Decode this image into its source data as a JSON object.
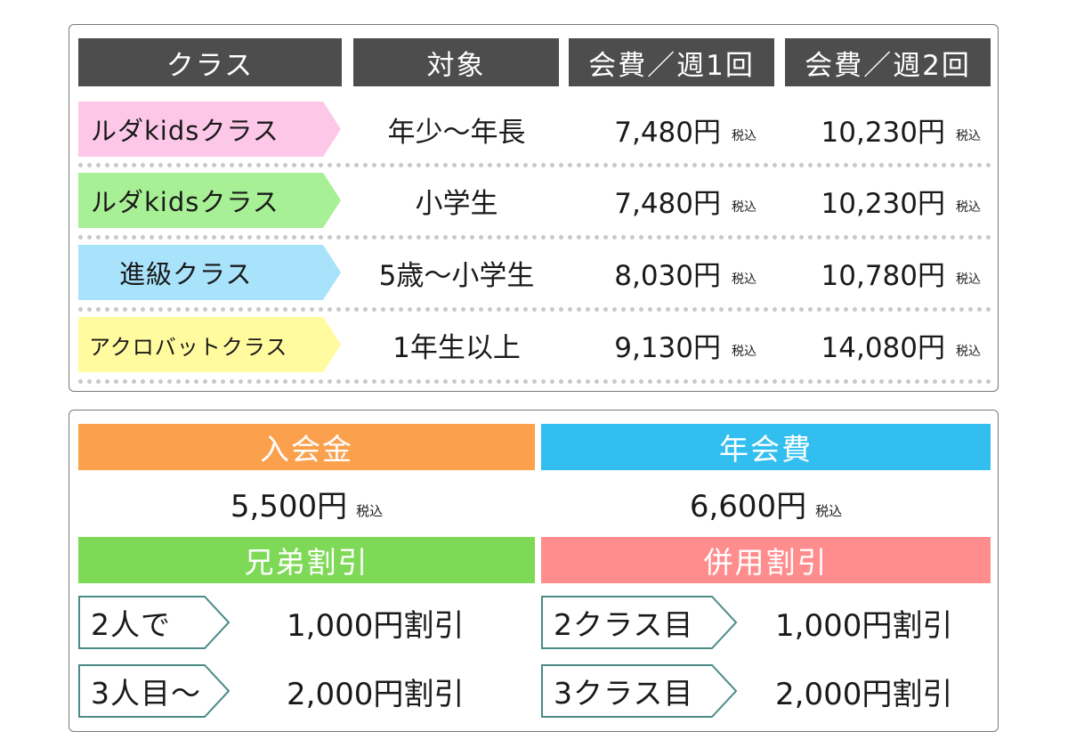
{
  "table": {
    "headers": [
      "クラス",
      "対象",
      "会費／週1回",
      "会費／週2回"
    ],
    "tax_label": "税込",
    "rows": [
      {
        "class": "ルダkidsクラス",
        "target": "年少～年長",
        "weekly1": "7,480円",
        "weekly2": "10,230円",
        "color": "#fdc8e8"
      },
      {
        "class": "ルダkidsクラス",
        "target": "小学生",
        "weekly1": "7,480円",
        "weekly2": "10,230円",
        "color": "#a7f095"
      },
      {
        "class": "進級クラス",
        "target": "5歳～小学生",
        "weekly1": "8,030円",
        "weekly2": "10,780円",
        "color": "#a9e3fb"
      },
      {
        "class": "アクロバットクラス",
        "target": "1年生以上",
        "weekly1": "9,130円",
        "weekly2": "14,080円",
        "color": "#fffb9e"
      }
    ]
  },
  "fees": {
    "admission": {
      "label": "入会金",
      "value": "5,500円",
      "tax": "税込",
      "color": "#fba04d"
    },
    "annual": {
      "label": "年会費",
      "value": "6,600円",
      "tax": "税込",
      "color": "#32bff0"
    }
  },
  "discounts": {
    "sibling": {
      "label": "兄弟割引",
      "color": "#7ed957",
      "items": [
        {
          "tag": "2人で",
          "value": "1,000円割引"
        },
        {
          "tag": "3人目～",
          "value": "2,000円割引"
        }
      ]
    },
    "combined": {
      "label": "併用割引",
      "color": "#ff8d8d",
      "items": [
        {
          "tag": "2クラス目",
          "value": "1,000円割引"
        },
        {
          "tag": "3クラス目",
          "value": "2,000円割引"
        }
      ]
    }
  }
}
